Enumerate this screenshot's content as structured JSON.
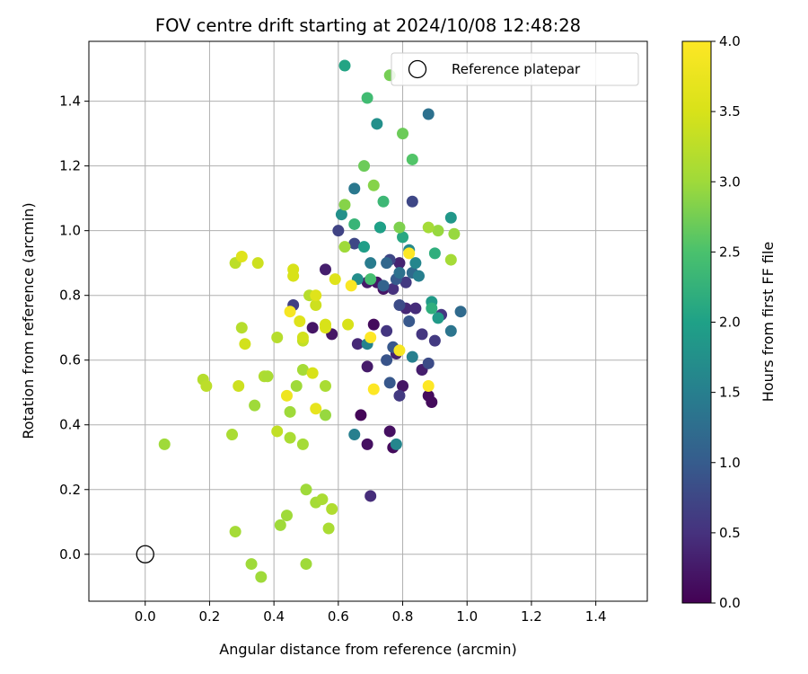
{
  "chart_data": {
    "type": "scatter",
    "title": "FOV centre drift starting at 2024/10/08 12:48:28",
    "xlabel": "Angular distance from reference (arcmin)",
    "ylabel": "Rotation from reference (arcmin)",
    "xlim": [
      -0.175,
      1.56
    ],
    "ylim": [
      -0.145,
      1.585
    ],
    "xticks": [
      "0.0",
      "0.2",
      "0.4",
      "0.6",
      "0.8",
      "1.0",
      "1.2",
      "1.4"
    ],
    "yticks": [
      "0.0",
      "0.2",
      "0.4",
      "0.6",
      "0.8",
      "1.0",
      "1.2",
      "1.4"
    ],
    "grid": true,
    "legend": {
      "position": "top-right",
      "label": "Reference platepar"
    },
    "reference": {
      "x": 0.0,
      "y": 0.0
    },
    "colorbar": {
      "label": "Hours from first FF file",
      "colormap": "viridis",
      "range": [
        0.0,
        4.0
      ],
      "ticks": [
        "0.0",
        "0.5",
        "1.0",
        "1.5",
        "2.0",
        "2.5",
        "3.0",
        "3.5",
        "4.0"
      ]
    },
    "points": [
      {
        "x": 0.67,
        "y": 0.43,
        "c": 0.05
      },
      {
        "x": 0.77,
        "y": 0.33,
        "c": 0.1
      },
      {
        "x": 0.89,
        "y": 0.47,
        "c": 0.1
      },
      {
        "x": 0.69,
        "y": 0.34,
        "c": 0.15
      },
      {
        "x": 0.76,
        "y": 0.38,
        "c": 0.15
      },
      {
        "x": 0.88,
        "y": 0.49,
        "c": 0.1
      },
      {
        "x": 0.71,
        "y": 0.71,
        "c": 0.1
      },
      {
        "x": 0.58,
        "y": 0.68,
        "c": 0.2
      },
      {
        "x": 0.52,
        "y": 0.7,
        "c": 0.2
      },
      {
        "x": 0.69,
        "y": 0.58,
        "c": 0.25
      },
      {
        "x": 0.8,
        "y": 0.52,
        "c": 0.2
      },
      {
        "x": 0.86,
        "y": 0.57,
        "c": 0.3
      },
      {
        "x": 0.74,
        "y": 0.82,
        "c": 0.2
      },
      {
        "x": 0.69,
        "y": 0.84,
        "c": 0.25
      },
      {
        "x": 0.72,
        "y": 0.84,
        "c": 0.2
      },
      {
        "x": 0.56,
        "y": 0.88,
        "c": 0.3
      },
      {
        "x": 0.66,
        "y": 0.65,
        "c": 0.4
      },
      {
        "x": 0.7,
        "y": 0.18,
        "c": 0.45
      },
      {
        "x": 0.81,
        "y": 0.76,
        "c": 0.4
      },
      {
        "x": 0.78,
        "y": 0.62,
        "c": 0.35
      },
      {
        "x": 0.79,
        "y": 0.9,
        "c": 0.35
      },
      {
        "x": 0.84,
        "y": 0.76,
        "c": 0.45
      },
      {
        "x": 0.86,
        "y": 0.68,
        "c": 0.55
      },
      {
        "x": 0.77,
        "y": 0.82,
        "c": 0.5
      },
      {
        "x": 0.9,
        "y": 0.66,
        "c": 0.6
      },
      {
        "x": 0.92,
        "y": 0.74,
        "c": 0.55
      },
      {
        "x": 0.75,
        "y": 0.69,
        "c": 0.55
      },
      {
        "x": 0.79,
        "y": 0.49,
        "c": 0.6
      },
      {
        "x": 0.81,
        "y": 0.84,
        "c": 0.6
      },
      {
        "x": 0.46,
        "y": 0.77,
        "c": 0.65
      },
      {
        "x": 0.6,
        "y": 1.0,
        "c": 0.7
      },
      {
        "x": 0.65,
        "y": 0.96,
        "c": 0.75
      },
      {
        "x": 0.76,
        "y": 0.91,
        "c": 0.75
      },
      {
        "x": 0.83,
        "y": 1.09,
        "c": 0.75
      },
      {
        "x": 0.79,
        "y": 0.77,
        "c": 0.8
      },
      {
        "x": 0.88,
        "y": 0.59,
        "c": 0.8
      },
      {
        "x": 0.75,
        "y": 0.6,
        "c": 0.9
      },
      {
        "x": 0.77,
        "y": 0.64,
        "c": 0.95
      },
      {
        "x": 0.82,
        "y": 0.72,
        "c": 0.95
      },
      {
        "x": 0.76,
        "y": 0.53,
        "c": 0.95
      },
      {
        "x": 0.78,
        "y": 0.85,
        "c": 1.0
      },
      {
        "x": 0.73,
        "y": 1.01,
        "c": 1.05
      },
      {
        "x": 0.74,
        "y": 0.83,
        "c": 1.1
      },
      {
        "x": 0.75,
        "y": 0.9,
        "c": 1.15
      },
      {
        "x": 0.83,
        "y": 0.87,
        "c": 1.2
      },
      {
        "x": 0.98,
        "y": 0.75,
        "c": 1.2
      },
      {
        "x": 0.88,
        "y": 1.36,
        "c": 1.3
      },
      {
        "x": 0.79,
        "y": 0.87,
        "c": 1.3
      },
      {
        "x": 0.95,
        "y": 0.69,
        "c": 1.35
      },
      {
        "x": 0.65,
        "y": 1.13,
        "c": 1.4
      },
      {
        "x": 0.7,
        "y": 0.9,
        "c": 1.45
      },
      {
        "x": 0.85,
        "y": 0.86,
        "c": 1.5
      },
      {
        "x": 0.83,
        "y": 0.61,
        "c": 1.5
      },
      {
        "x": 0.65,
        "y": 0.37,
        "c": 1.5
      },
      {
        "x": 0.69,
        "y": 0.65,
        "c": 1.55
      },
      {
        "x": 0.78,
        "y": 0.34,
        "c": 1.6
      },
      {
        "x": 0.84,
        "y": 0.9,
        "c": 1.6
      },
      {
        "x": 0.82,
        "y": 0.94,
        "c": 1.65
      },
      {
        "x": 0.66,
        "y": 0.85,
        "c": 1.7
      },
      {
        "x": 0.61,
        "y": 1.05,
        "c": 1.75
      },
      {
        "x": 0.72,
        "y": 1.33,
        "c": 1.75
      },
      {
        "x": 0.95,
        "y": 1.04,
        "c": 1.85
      },
      {
        "x": 0.91,
        "y": 0.73,
        "c": 1.9
      },
      {
        "x": 0.89,
        "y": 0.78,
        "c": 1.9
      },
      {
        "x": 0.68,
        "y": 0.95,
        "c": 1.95
      },
      {
        "x": 0.73,
        "y": 1.01,
        "c": 2.0
      },
      {
        "x": 0.62,
        "y": 1.51,
        "c": 2.05
      },
      {
        "x": 0.8,
        "y": 0.98,
        "c": 2.1
      },
      {
        "x": 0.9,
        "y": 0.93,
        "c": 2.2
      },
      {
        "x": 0.89,
        "y": 0.76,
        "c": 2.2
      },
      {
        "x": 0.65,
        "y": 1.02,
        "c": 2.3
      },
      {
        "x": 0.74,
        "y": 1.09,
        "c": 2.35
      },
      {
        "x": 0.69,
        "y": 1.41,
        "c": 2.4
      },
      {
        "x": 0.7,
        "y": 0.85,
        "c": 2.45
      },
      {
        "x": 0.83,
        "y": 1.22,
        "c": 2.55
      },
      {
        "x": 0.68,
        "y": 1.2,
        "c": 2.7
      },
      {
        "x": 0.8,
        "y": 1.3,
        "c": 2.7
      },
      {
        "x": 0.76,
        "y": 1.48,
        "c": 2.75
      },
      {
        "x": 0.62,
        "y": 1.08,
        "c": 2.85
      },
      {
        "x": 0.71,
        "y": 1.14,
        "c": 2.85
      },
      {
        "x": 0.79,
        "y": 1.01,
        "c": 2.8
      },
      {
        "x": 0.91,
        "y": 1.0,
        "c": 2.95
      },
      {
        "x": 0.96,
        "y": 0.99,
        "c": 2.95
      },
      {
        "x": 0.95,
        "y": 0.91,
        "c": 3.05
      },
      {
        "x": 0.88,
        "y": 1.01,
        "c": 3.05
      },
      {
        "x": 0.62,
        "y": 0.95,
        "c": 3.0
      },
      {
        "x": 0.56,
        "y": 0.43,
        "c": 2.95
      },
      {
        "x": 0.47,
        "y": 0.52,
        "c": 3.0
      },
      {
        "x": 0.45,
        "y": 0.44,
        "c": 3.0
      },
      {
        "x": 0.49,
        "y": 0.57,
        "c": 3.05
      },
      {
        "x": 0.56,
        "y": 0.52,
        "c": 3.1
      },
      {
        "x": 0.49,
        "y": 0.34,
        "c": 3.05
      },
      {
        "x": 0.45,
        "y": 0.36,
        "c": 3.1
      },
      {
        "x": 0.53,
        "y": 0.16,
        "c": 3.05
      },
      {
        "x": 0.5,
        "y": 0.2,
        "c": 3.0
      },
      {
        "x": 0.42,
        "y": 0.09,
        "c": 3.0
      },
      {
        "x": 0.44,
        "y": 0.12,
        "c": 3.0
      },
      {
        "x": 0.58,
        "y": 0.14,
        "c": 3.15
      },
      {
        "x": 0.57,
        "y": 0.08,
        "c": 3.1
      },
      {
        "x": 0.55,
        "y": 0.17,
        "c": 3.1
      },
      {
        "x": 0.5,
        "y": -0.03,
        "c": 3.0
      },
      {
        "x": 0.36,
        "y": -0.07,
        "c": 3.0
      },
      {
        "x": 0.33,
        "y": -0.03,
        "c": 3.0
      },
      {
        "x": 0.28,
        "y": 0.07,
        "c": 3.05
      },
      {
        "x": 0.06,
        "y": 0.34,
        "c": 3.0
      },
      {
        "x": 0.18,
        "y": 0.54,
        "c": 3.2
      },
      {
        "x": 0.19,
        "y": 0.52,
        "c": 3.25
      },
      {
        "x": 0.27,
        "y": 0.37,
        "c": 3.1
      },
      {
        "x": 0.34,
        "y": 0.46,
        "c": 3.0
      },
      {
        "x": 0.37,
        "y": 0.55,
        "c": 3.15
      },
      {
        "x": 0.38,
        "y": 0.55,
        "c": 3.1
      },
      {
        "x": 0.41,
        "y": 0.38,
        "c": 3.3
      },
      {
        "x": 0.41,
        "y": 0.67,
        "c": 3.2
      },
      {
        "x": 0.3,
        "y": 0.7,
        "c": 3.2
      },
      {
        "x": 0.28,
        "y": 0.9,
        "c": 3.25
      },
      {
        "x": 0.49,
        "y": 0.66,
        "c": 3.3
      },
      {
        "x": 0.51,
        "y": 0.8,
        "c": 3.2
      },
      {
        "x": 0.31,
        "y": 0.65,
        "c": 3.45
      },
      {
        "x": 0.29,
        "y": 0.52,
        "c": 3.4
      },
      {
        "x": 0.35,
        "y": 0.9,
        "c": 3.4
      },
      {
        "x": 0.46,
        "y": 0.86,
        "c": 3.5
      },
      {
        "x": 0.46,
        "y": 0.88,
        "c": 3.5
      },
      {
        "x": 0.3,
        "y": 0.92,
        "c": 3.6
      },
      {
        "x": 0.49,
        "y": 0.67,
        "c": 3.45
      },
      {
        "x": 0.52,
        "y": 0.56,
        "c": 3.5
      },
      {
        "x": 0.53,
        "y": 0.77,
        "c": 3.4
      },
      {
        "x": 0.56,
        "y": 0.7,
        "c": 3.55
      },
      {
        "x": 0.56,
        "y": 0.71,
        "c": 3.5
      },
      {
        "x": 0.53,
        "y": 0.8,
        "c": 3.6
      },
      {
        "x": 0.53,
        "y": 0.45,
        "c": 3.7
      },
      {
        "x": 0.48,
        "y": 0.72,
        "c": 3.6
      },
      {
        "x": 0.59,
        "y": 0.85,
        "c": 3.6
      },
      {
        "x": 0.63,
        "y": 0.71,
        "c": 3.5
      },
      {
        "x": 0.44,
        "y": 0.49,
        "c": 3.8
      },
      {
        "x": 0.45,
        "y": 0.75,
        "c": 3.9
      },
      {
        "x": 0.64,
        "y": 0.83,
        "c": 3.95
      },
      {
        "x": 0.7,
        "y": 0.67,
        "c": 4.0
      },
      {
        "x": 0.71,
        "y": 0.51,
        "c": 4.0
      },
      {
        "x": 0.79,
        "y": 0.63,
        "c": 3.9
      },
      {
        "x": 0.82,
        "y": 0.93,
        "c": 4.0
      },
      {
        "x": 0.88,
        "y": 0.52,
        "c": 4.0
      }
    ]
  }
}
